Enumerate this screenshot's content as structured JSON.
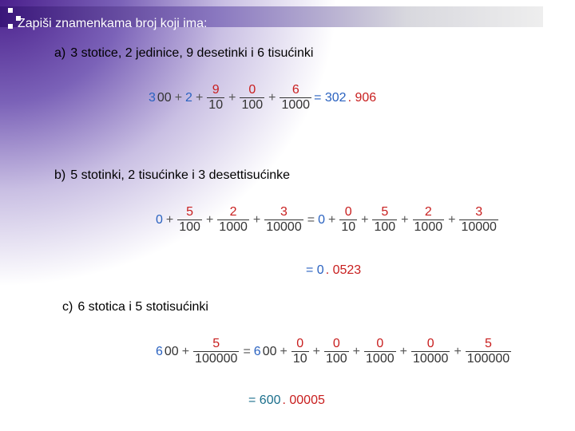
{
  "title": "Zapiši znamenkama broj koji ima:",
  "tasks": [
    {
      "label": "a)",
      "text": "3 stotice, 2 jedinice, 9 desetinki i 6 tisućinki",
      "equations": [
        [
          {
            "text": "3",
            "color": "#2a62c0"
          },
          {
            "text": "00"
          },
          {
            "text": "+"
          },
          {
            "text": "2",
            "color": "#2a62c0"
          },
          {
            "text": "+"
          },
          {
            "num": "9",
            "den": "10"
          },
          {
            "text": "+"
          },
          {
            "num": "0",
            "den": "100"
          },
          {
            "text": "+"
          },
          {
            "num": "6",
            "den": "1000"
          },
          {
            "text": "= 302",
            "color": "#2a62c0"
          },
          {
            "text": ". 906",
            "color": "#c81e1e"
          }
        ]
      ]
    },
    {
      "label": "b)",
      "text": "5 stotinki, 2 tisućinke i 3 desettisućinke",
      "equations": [
        [
          {
            "text": "0",
            "color": "#2a62c0"
          },
          {
            "text": "+"
          },
          {
            "num": "5",
            "den": "100"
          },
          {
            "text": "+"
          },
          {
            "num": "2",
            "den": "1000"
          },
          {
            "text": "+"
          },
          {
            "num": "3",
            "den": "10000"
          },
          {
            "text": "="
          },
          {
            "text": "0",
            "color": "#2a62c0"
          },
          {
            "text": "+"
          },
          {
            "num": "0",
            "den": "10"
          },
          {
            "text": "+"
          },
          {
            "num": "5",
            "den": "100"
          },
          {
            "text": "+"
          },
          {
            "num": "2",
            "den": "1000"
          },
          {
            "text": "+"
          },
          {
            "num": "3",
            "den": "10000"
          }
        ],
        [
          {
            "text": "= 0",
            "color": "#2a62c0"
          },
          {
            "text": ". 0523",
            "color": "#c81e1e"
          }
        ]
      ]
    },
    {
      "label": "c)",
      "text": "6 stotica i 5 stotisućinki",
      "equations": [
        [
          {
            "text": "6",
            "color": "#2a62c0"
          },
          {
            "text": "00"
          },
          {
            "text": "+"
          },
          {
            "num": "5",
            "den": "100000"
          },
          {
            "text": "="
          },
          {
            "text": "6",
            "color": "#2a62c0"
          },
          {
            "text": "00"
          },
          {
            "text": "+"
          },
          {
            "num": "0",
            "den": "10"
          },
          {
            "text": "+"
          },
          {
            "num": "0",
            "den": "100"
          },
          {
            "text": "+"
          },
          {
            "num": "0",
            "den": "1000"
          },
          {
            "text": "+"
          },
          {
            "num": "0",
            "den": "10000"
          },
          {
            "text": "+"
          },
          {
            "num": "5",
            "den": "100000"
          }
        ],
        [
          {
            "text": "= 600",
            "color": "#1b6f8c"
          },
          {
            "text": ". 00005",
            "color": "#c81e1e"
          }
        ]
      ]
    }
  ]
}
